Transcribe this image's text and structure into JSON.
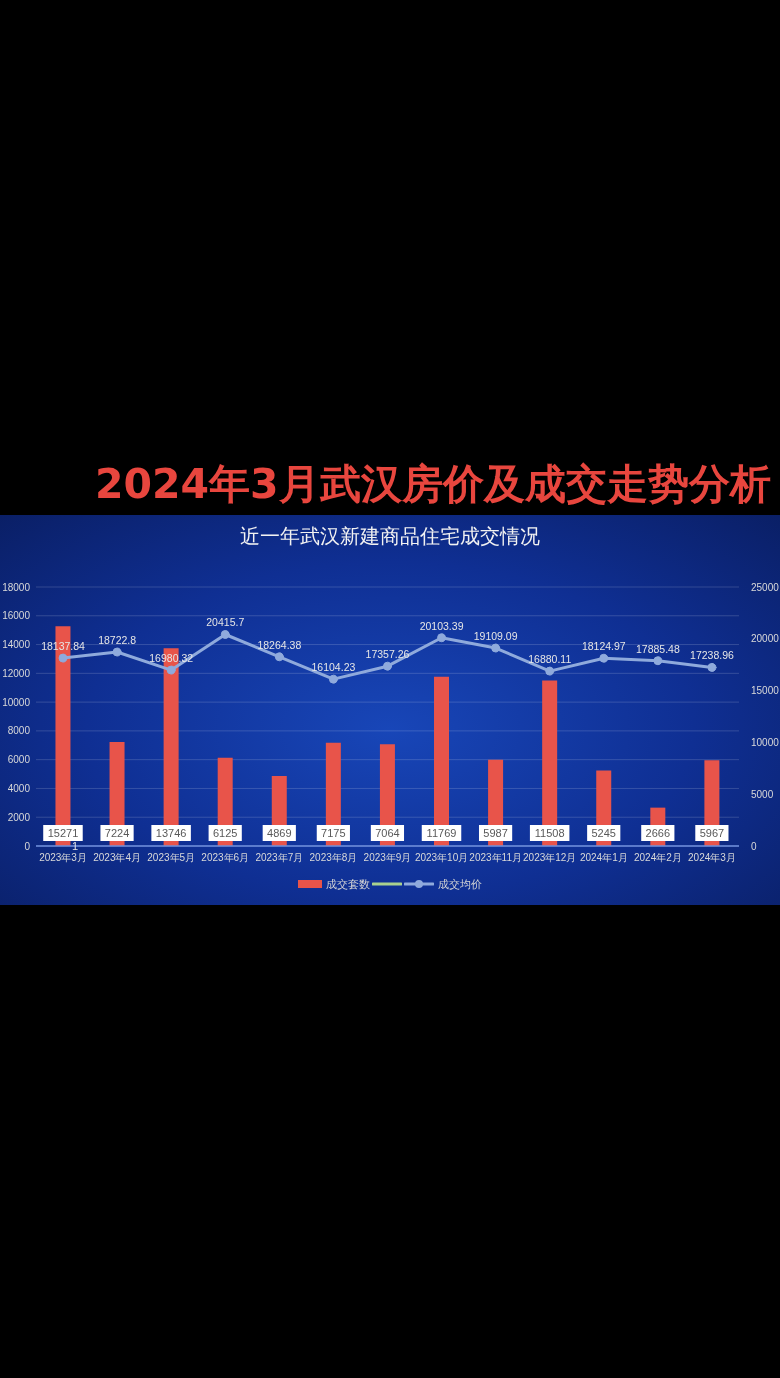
{
  "chart_data": {
    "type": "bar",
    "title": "2024年3月武汉房价及成交走势分析",
    "subtitle": "近一年武汉新建商品住宅成交情况",
    "categories": [
      "2023年3月",
      "2023年4月",
      "2023年5月",
      "2023年6月",
      "2023年7月",
      "2023年8月",
      "2023年9月",
      "2023年10月",
      "2023年11月",
      "2023年12月",
      "2024年1月",
      "2024年2月",
      "2024年3月"
    ],
    "series": [
      {
        "name": "成交套数",
        "color": "#e8544a",
        "values": [
          15271,
          7224,
          13746,
          6125,
          4869,
          7175,
          7064,
          11769,
          5987,
          11508,
          5245,
          2666,
          5967
        ]
      },
      {
        "type": "line",
        "color": "#a9d18e",
        "marker": "none",
        "values": [
          null,
          null,
          null,
          null,
          null,
          null,
          null,
          null,
          null,
          null,
          null,
          null,
          null
        ]
      },
      {
        "name": "成交均价",
        "type": "line",
        "axis": "y2",
        "color": "#8faadc",
        "marker": "circle",
        "values": [
          18137.84,
          18722.8,
          16980.32,
          20415.7,
          18264.38,
          16104.23,
          17357.26,
          20103.39,
          19109.09,
          16880.11,
          18124.97,
          17885.48,
          17238.96
        ]
      }
    ],
    "ylim": [
      0,
      18000
    ],
    "yticks": [
      0,
      2000,
      4000,
      6000,
      8000,
      10000,
      12000,
      14000,
      16000,
      18000
    ],
    "y2lim": [
      0,
      25000
    ],
    "y2ticks": [
      0,
      5000,
      10000,
      15000,
      20000,
      25000
    ],
    "annotations": [
      {
        "text": "1",
        "x": "2023年3月",
        "y": 0
      }
    ],
    "grid": "y",
    "legend": "bottom",
    "data_labels": true
  }
}
